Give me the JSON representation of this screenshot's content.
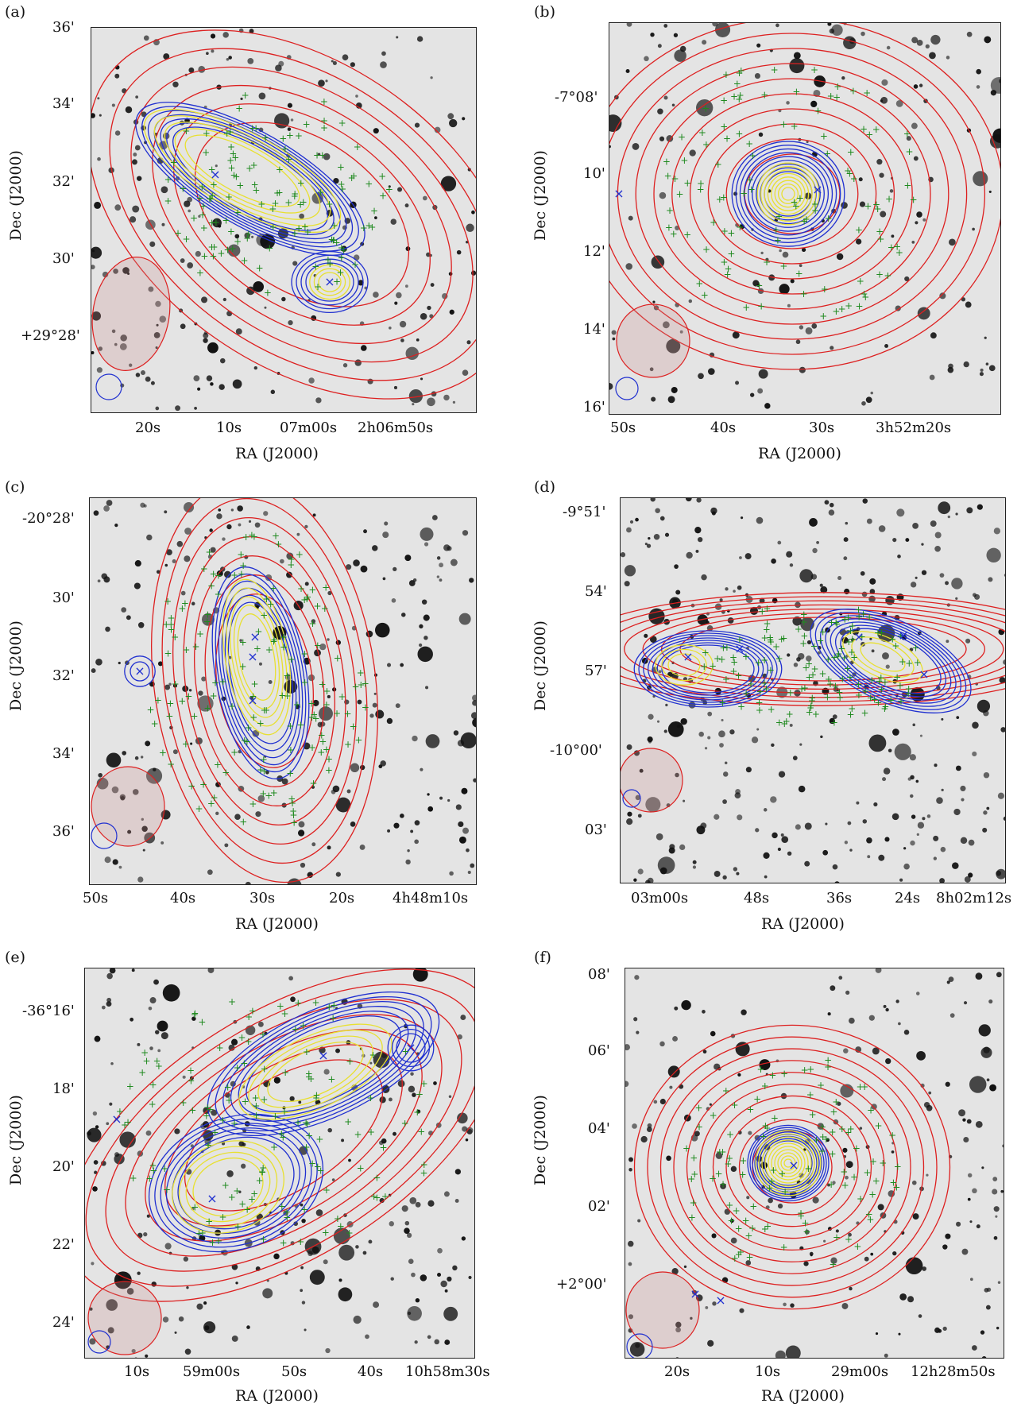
{
  "panels": [
    {
      "label": "(a)",
      "xlabel": "RA (J2000)",
      "ylabel": "Dec (J2000)",
      "yticks": [
        "36'",
        "34'",
        "32'",
        "30'",
        "+29°28'"
      ],
      "xticks": [
        "20s",
        "10s",
        "07m00s",
        "2h06m50s"
      ]
    },
    {
      "label": "(b)",
      "xlabel": "RA (J2000)",
      "ylabel": "Dec (J2000)",
      "yticks": [
        "-7°08'",
        "10'",
        "12'",
        "14'",
        "16'"
      ],
      "xticks": [
        "50s",
        "40s",
        "30s",
        "3h52m20s"
      ]
    },
    {
      "label": "(c)",
      "xlabel": "RA (J2000)",
      "ylabel": "Dec (J2000)",
      "yticks": [
        "-20°28'",
        "30'",
        "32'",
        "34'",
        "36'"
      ],
      "xticks": [
        "50s",
        "40s",
        "30s",
        "20s",
        "4h48m10s"
      ]
    },
    {
      "label": "(d)",
      "xlabel": "RA (J2000)",
      "ylabel": "Dec (J2000)",
      "yticks": [
        "-9°51'",
        "54'",
        "57'",
        "-10°00'",
        "03'"
      ],
      "xticks": [
        "03m00s",
        "48s",
        "36s",
        "24s",
        "8h02m12s"
      ]
    },
    {
      "label": "(e)",
      "xlabel": "RA (J2000)",
      "ylabel": "Dec (J2000)",
      "yticks": [
        "-36°16'",
        "18'",
        "20'",
        "22'",
        "24'"
      ],
      "xticks": [
        "10s",
        "59m00s",
        "50s",
        "40s",
        "10h58m30s"
      ]
    },
    {
      "label": "(f)",
      "xlabel": "RA (J2000)",
      "ylabel": "Dec (J2000)",
      "yticks": [
        "08'",
        "06'",
        "04'",
        "02'",
        "+2°00'"
      ],
      "xticks": [
        "20s",
        "10s",
        "29m00s",
        "12h28m50s"
      ]
    }
  ],
  "colors": {
    "red_contours": "#dd2020",
    "blue_contours": "#2030d0",
    "yellow_contours": "#e8e030",
    "galaxy_markers": "#1f8a1f",
    "background": "#e4e4e4",
    "stars": "#111111"
  }
}
